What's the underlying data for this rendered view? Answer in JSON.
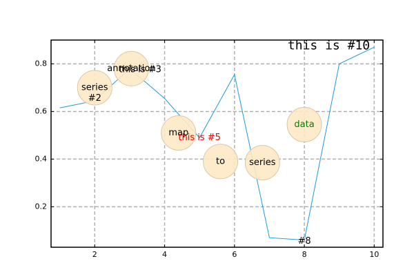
{
  "chart_data": {
    "type": "line",
    "x": [
      1,
      2,
      3,
      4,
      5,
      6,
      7,
      8,
      9,
      10
    ],
    "values": [
      0.615,
      0.645,
      0.78,
      0.655,
      0.49,
      0.755,
      0.07,
      0.06,
      0.8,
      0.87
    ],
    "color": "#1a9bd7",
    "xlim": [
      0.75,
      10.25
    ],
    "ylim": [
      0.03,
      0.9
    ],
    "xticks": [
      2,
      4,
      6,
      8,
      10
    ],
    "yticks": [
      0.2,
      0.4,
      0.6,
      0.8
    ],
    "grid": true,
    "annotations": [
      {
        "text": "series",
        "x": 2,
        "y": 0.7,
        "color": "#000000",
        "bubble": true
      },
      {
        "text": "#2",
        "x": 2,
        "y": 0.655,
        "color": "#000000",
        "bubble": false
      },
      {
        "text": "annotation",
        "x": 3.05,
        "y": 0.78,
        "color": "#000000",
        "bubble": true
      },
      {
        "text": "this is #3",
        "x": 3.3,
        "y": 0.776,
        "color": "#000000",
        "bubble": false
      },
      {
        "text": "map",
        "x": 4.4,
        "y": 0.51,
        "color": "#000000",
        "bubble": true
      },
      {
        "text": "this is #5",
        "x": 5,
        "y": 0.49,
        "color": "#ee0000",
        "bubble": false
      },
      {
        "text": "to",
        "x": 5.6,
        "y": 0.39,
        "color": "#000000",
        "bubble": true
      },
      {
        "text": "series",
        "x": 6.8,
        "y": 0.385,
        "color": "#000000",
        "bubble": true
      },
      {
        "text": "data",
        "x": 8,
        "y": 0.545,
        "color": "#008000",
        "bubble": true
      },
      {
        "text": "#8",
        "x": 8,
        "y": 0.055,
        "color": "#000000",
        "bubble": false
      },
      {
        "text": "this is #10",
        "x": 8.7,
        "y": 0.875,
        "color": "#000000",
        "bubble": false,
        "font": "monospace"
      }
    ]
  }
}
